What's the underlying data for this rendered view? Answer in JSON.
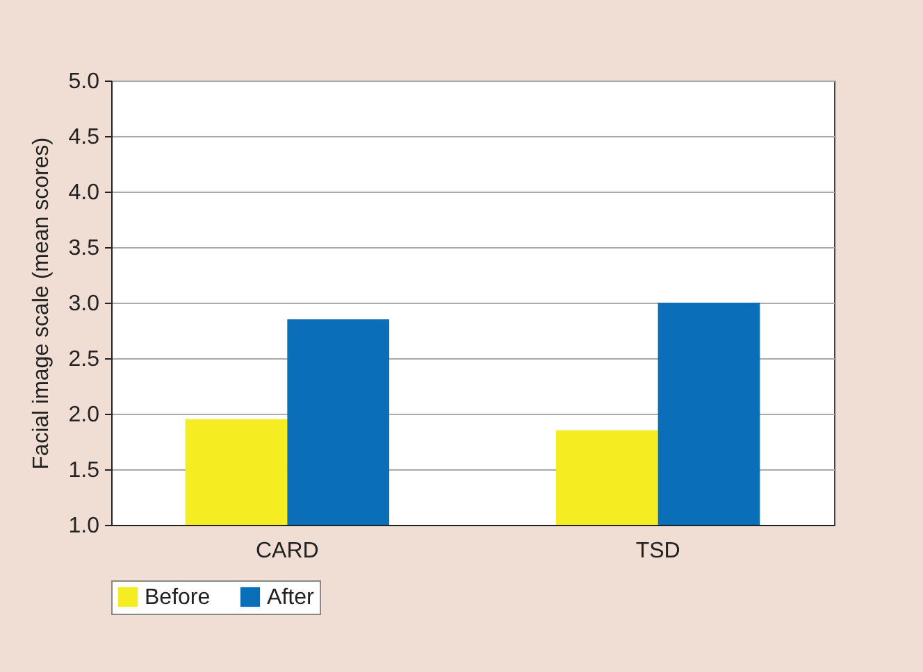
{
  "chart_data": {
    "type": "bar",
    "ylabel": "Facial image scale (mean scores)",
    "categories": [
      "CARD",
      "TSD"
    ],
    "series": [
      {
        "name": "Before",
        "color": "#f5ec22",
        "values": [
          1.95,
          1.85
        ]
      },
      {
        "name": "After",
        "color": "#0b6eb8",
        "values": [
          2.85,
          3.0
        ]
      }
    ],
    "ylim": [
      1.0,
      5.0
    ],
    "yticks": [
      {
        "value": 1,
        "label": "1.0"
      },
      {
        "value": 1.5,
        "label": "1.5"
      },
      {
        "value": 2,
        "label": "2.0"
      },
      {
        "value": 2.5,
        "label": "2.5"
      },
      {
        "value": 3,
        "label": "3.0"
      },
      {
        "value": 3.5,
        "label": "3.5"
      },
      {
        "value": 4,
        "label": "4.0"
      },
      {
        "value": 4.5,
        "label": "4.5"
      },
      {
        "value": 5,
        "label": "5.0"
      }
    ],
    "grid": "y",
    "legend": "bottom"
  }
}
